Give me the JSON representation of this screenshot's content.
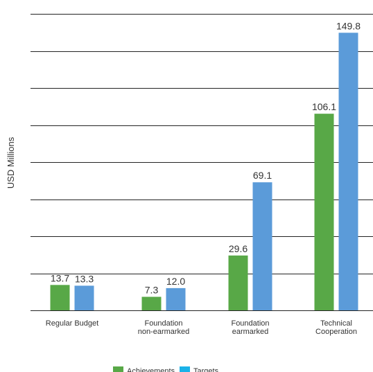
{
  "chart_data": {
    "type": "bar",
    "title": "",
    "xlabel": "",
    "ylabel": "USD Millions",
    "ylim": [
      0,
      160
    ],
    "grid": true,
    "legend_position": "bottom",
    "categories": [
      [
        "Regular Budget"
      ],
      [
        "Foundation",
        "non-earmarked"
      ],
      [
        "Foundation",
        "earmarked"
      ],
      [
        "Technical",
        "Cooperation"
      ]
    ],
    "series": [
      {
        "name": "Achievements",
        "color": "#58a847",
        "values": [
          13.7,
          7.3,
          29.6,
          106.1
        ],
        "labels": [
          "13.7",
          "7.3",
          "29.6",
          "106.1"
        ]
      },
      {
        "name": "Targets",
        "color": "#5b9bd9",
        "values": [
          13.3,
          12.0,
          69.1,
          149.8
        ],
        "labels": [
          "13.3",
          "12.0",
          "69.1",
          "149.8"
        ]
      }
    ],
    "legend_swatch_colors": [
      "#58a847",
      "#1ab2e8"
    ]
  }
}
